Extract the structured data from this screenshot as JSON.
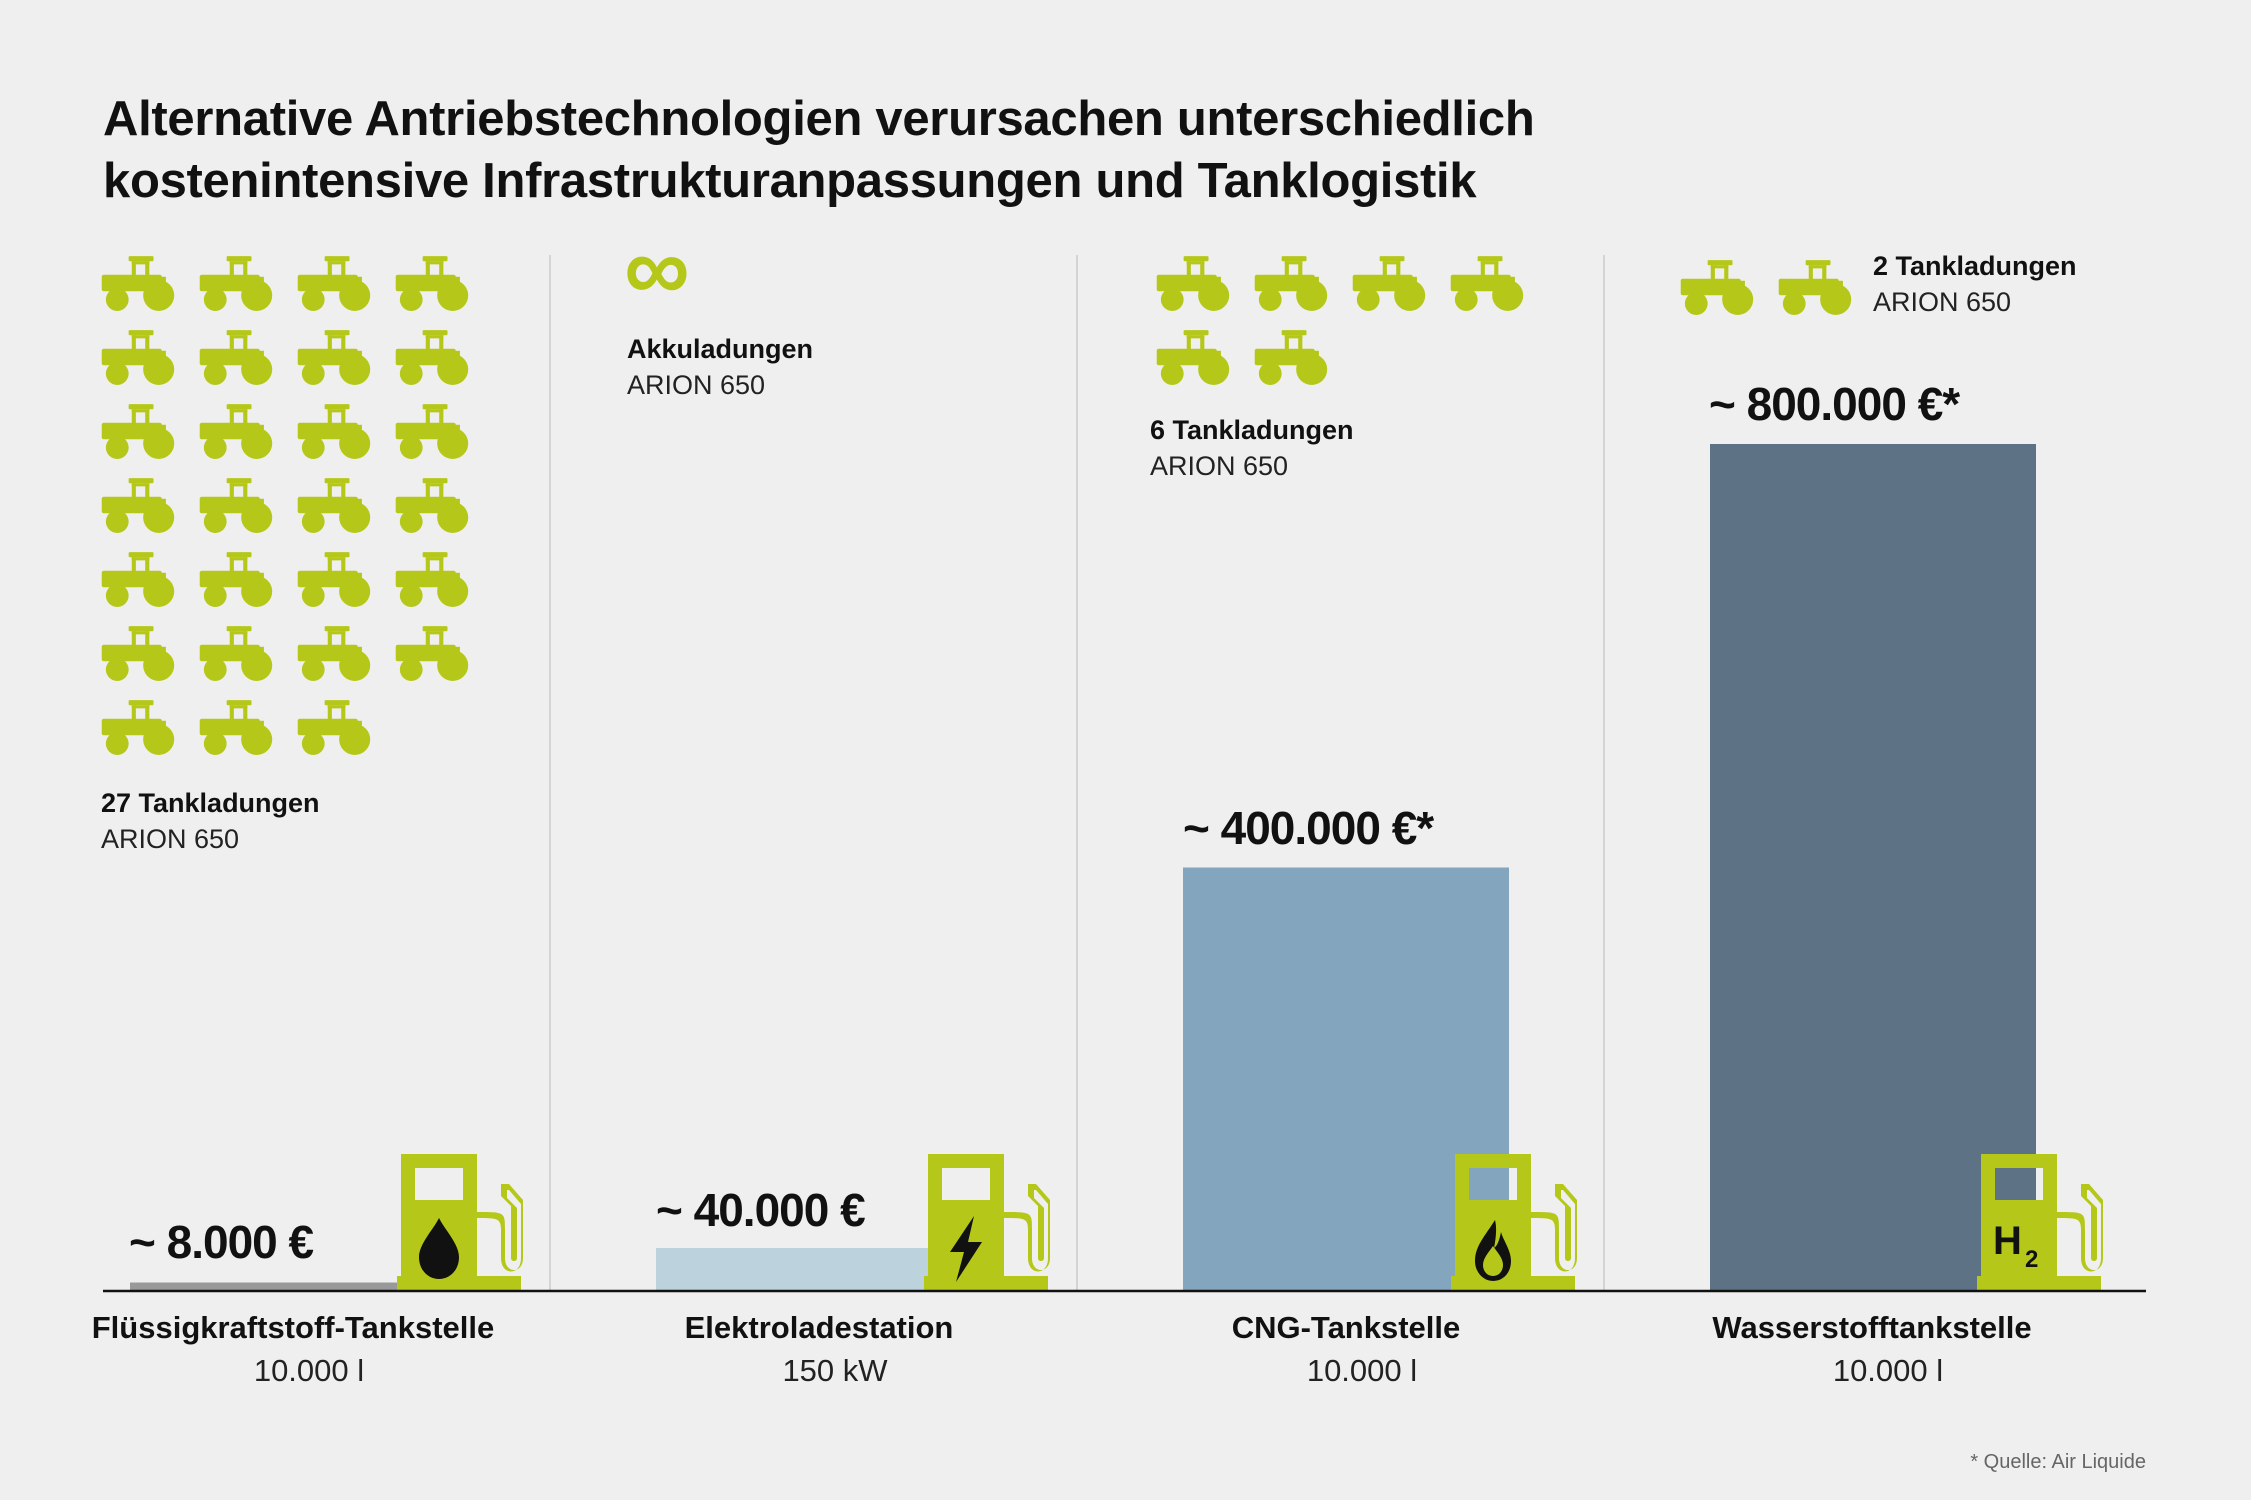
{
  "title": {
    "line1": "Alternative Antriebstechnologien verursachen unterschiedlich",
    "line2": "kostenintensive Infrastrukturanpassungen und Tanklogistik"
  },
  "colors": {
    "accent": "#b5c81a",
    "background": "#efefef",
    "divider": "#d4d4d4",
    "axis": "#111111"
  },
  "chart_data": {
    "type": "bar",
    "categories": [
      "Flüssigkraftstoff-Tankstelle",
      "Elektroladestation",
      "CNG-Tankstelle",
      "Wasserstofftankstelle"
    ],
    "subcategories": [
      "10.000 l",
      "150 kW",
      "10.000 l",
      "10.000 l"
    ],
    "values": [
      8000,
      40000,
      400000,
      800000
    ],
    "value_labels": [
      "~ 8.000 €",
      "~ 40.000 €",
      "~ 400.000 €*",
      "~ 800.000 €*"
    ],
    "bar_colors": [
      "#999999",
      "#bcd3de",
      "#83a5bd",
      "#5d7285"
    ],
    "ylim": [
      0,
      800000
    ],
    "refuel_counts": [
      27,
      null,
      6,
      2
    ],
    "refuel_labels": [
      "27 Tankladungen",
      "Akkuladungen",
      "6 Tankladungen",
      "2 Tankladungen"
    ],
    "infinity_symbol": "∞",
    "refuel_model": "ARION 650",
    "station_icons": [
      "fuel-drop-icon",
      "lightning-icon",
      "gas-flame-icon",
      "h2-icon"
    ],
    "h2_label": "H",
    "h2_subscript": "2",
    "source_note": "* Quelle: Air Liquide"
  }
}
